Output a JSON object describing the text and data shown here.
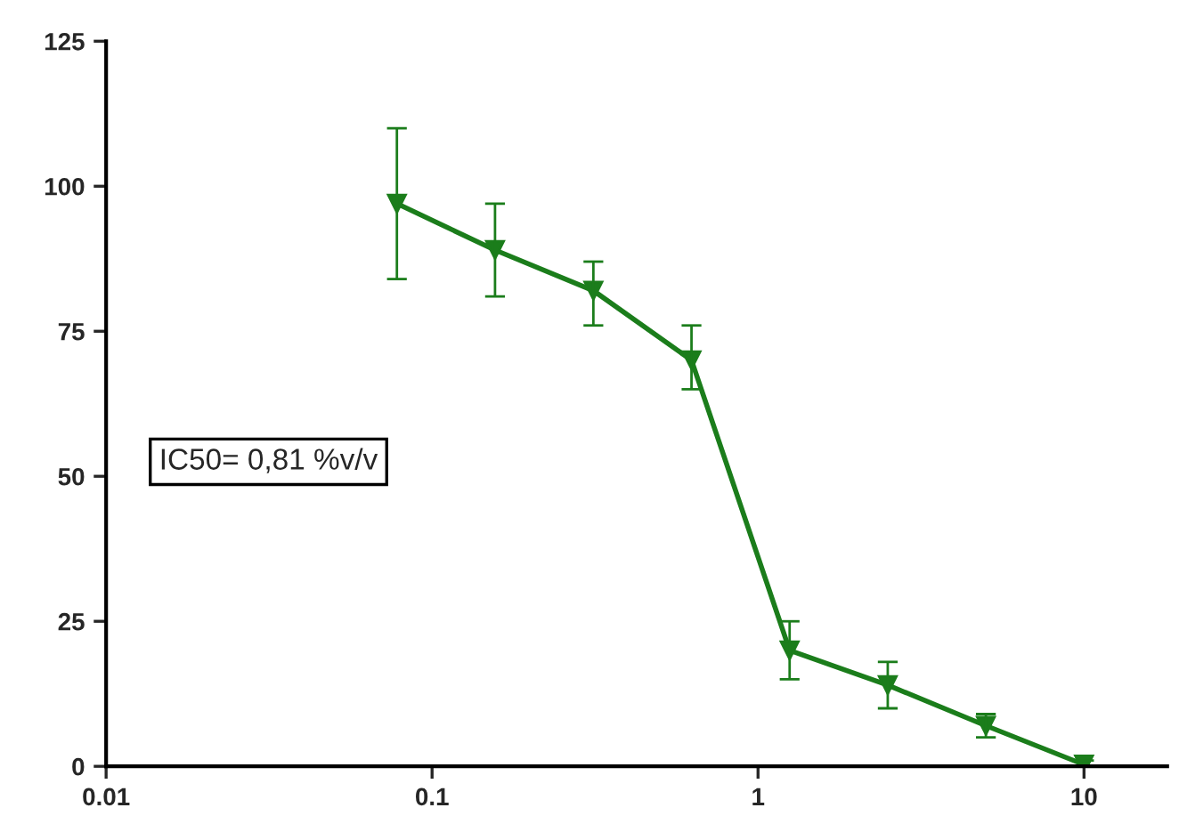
{
  "chart_data": {
    "type": "line",
    "log": "x",
    "x": [
      0.078,
      0.156,
      0.3125,
      0.625,
      1.25,
      2.5,
      5,
      10
    ],
    "series": [
      {
        "color": "#1b7d1b",
        "values": [
          97,
          89,
          82,
          70,
          20,
          14,
          7,
          0.3
        ],
        "errors": [
          [
            84,
            110
          ],
          [
            81,
            97
          ],
          [
            76,
            87
          ],
          [
            65,
            76
          ],
          [
            15,
            25
          ],
          [
            10,
            18
          ],
          [
            5,
            9
          ],
          [
            0,
            1
          ]
        ]
      }
    ],
    "xlim": [
      0.01,
      18
    ],
    "xticks": [
      0.01,
      0.1,
      1,
      10
    ],
    "ylim": [
      0,
      125
    ],
    "yticks": [
      0,
      25,
      50,
      75,
      100,
      125
    ],
    "grid": false,
    "legend": false,
    "marker": "triangle",
    "line_style": "solid",
    "annotations": [
      "IC50= 0,81 %v/v"
    ]
  }
}
